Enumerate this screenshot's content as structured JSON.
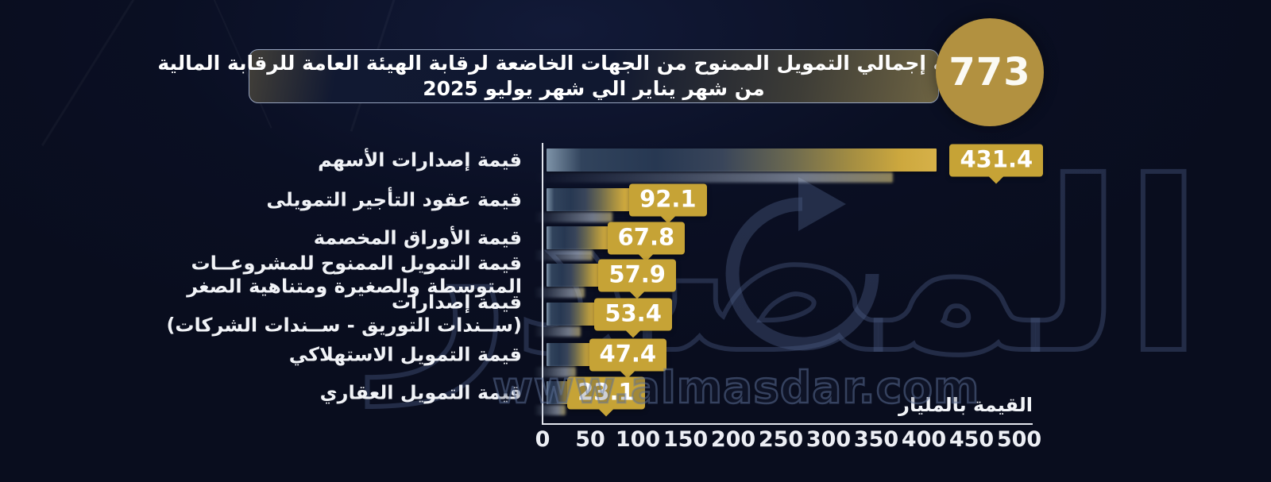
{
  "header": {
    "title_line1": "مليار جنيه إجمالي التمويل الممنوح من الجهات الخاضعة لرقابة الهيئة العامة للرقابة المالية",
    "title_line2": "من شهر يناير الي شهر يوليو 2025",
    "total_value": "773"
  },
  "watermark": {
    "logo_text": "المصدر",
    "site": "www.almasdar.com"
  },
  "chart_data": {
    "type": "bar",
    "orientation": "horizontal",
    "title": "إجمالي التمويل الممنوح من الجهات الخاضعة لرقابة الهيئة العامة للرقابة المالية (مليار جنيه) من يناير إلى يوليو 2025",
    "total": 773,
    "categories": [
      {
        "lines": [
          "قيمة إصدارات الأسهم"
        ]
      },
      {
        "lines": [
          "قيمة عقود التأجير التمويلى"
        ]
      },
      {
        "lines": [
          "قيمة الأوراق المخصمة"
        ]
      },
      {
        "lines": [
          "قيمة التمويل الممنوح للمشروعــات",
          "المتوسطة والصغيرة ومتناهية الصغر"
        ]
      },
      {
        "lines": [
          "قيمة إصدارات",
          "(ســندات التوريق - ســندات الشركات)"
        ]
      },
      {
        "lines": [
          "قيمة التمويل الاستهلاكي"
        ]
      },
      {
        "lines": [
          "قيمة التمويل العقاري"
        ]
      }
    ],
    "values": [
      431.4,
      92.1,
      67.8,
      57.9,
      53.4,
      47.4,
      23.1
    ],
    "xlabel": "القيمة بالمليار",
    "x_ticks": [
      0,
      50,
      100,
      150,
      200,
      250,
      300,
      350,
      400,
      450,
      500
    ],
    "xlim": [
      0,
      500
    ],
    "grid": false,
    "legend": false,
    "colors": {
      "background": "#0a0f23",
      "gold": "#c6a336",
      "circle_gold": "#b29140",
      "bar_gradient_end": "#d6b149",
      "axis": "#e3e6ee",
      "text": "#ffffff",
      "watermark": "#4a5c85"
    }
  }
}
